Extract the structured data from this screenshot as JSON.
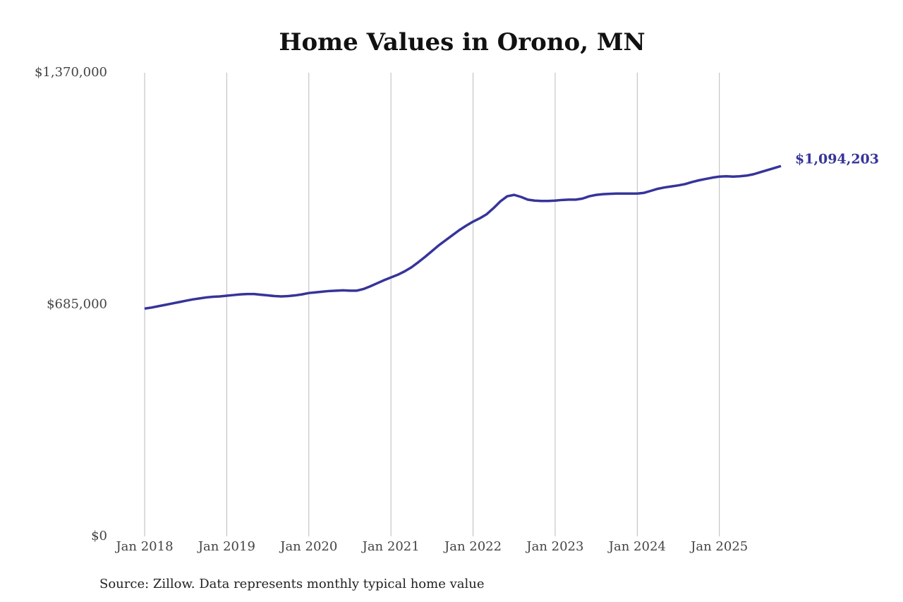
{
  "chart_data": {
    "type": "line",
    "title": "Home Values in Orono, MN",
    "source": "Source: Zillow. Data represents monthly typical home value",
    "color": "#36349a",
    "x": [
      "2018-01",
      "2018-02",
      "2018-03",
      "2018-04",
      "2018-05",
      "2018-06",
      "2018-07",
      "2018-08",
      "2018-09",
      "2018-10",
      "2018-11",
      "2018-12",
      "2019-01",
      "2019-02",
      "2019-03",
      "2019-04",
      "2019-05",
      "2019-06",
      "2019-07",
      "2019-08",
      "2019-09",
      "2019-10",
      "2019-11",
      "2019-12",
      "2020-01",
      "2020-02",
      "2020-03",
      "2020-04",
      "2020-05",
      "2020-06",
      "2020-07",
      "2020-08",
      "2020-09",
      "2020-10",
      "2020-11",
      "2020-12",
      "2021-01",
      "2021-02",
      "2021-03",
      "2021-04",
      "2021-05",
      "2021-06",
      "2021-07",
      "2021-08",
      "2021-09",
      "2021-10",
      "2021-11",
      "2021-12",
      "2022-01",
      "2022-02",
      "2022-03",
      "2022-04",
      "2022-05",
      "2022-06",
      "2022-07",
      "2022-08",
      "2022-09",
      "2022-10",
      "2022-11",
      "2022-12",
      "2023-01",
      "2023-02",
      "2023-03",
      "2023-04",
      "2023-05",
      "2023-06",
      "2023-07",
      "2023-08",
      "2023-09",
      "2023-10",
      "2023-11",
      "2023-12",
      "2024-01",
      "2024-02",
      "2024-03",
      "2024-04",
      "2024-05",
      "2024-06",
      "2024-07",
      "2024-08",
      "2024-09",
      "2024-10",
      "2024-11",
      "2024-12",
      "2025-01",
      "2025-02",
      "2025-03",
      "2025-04",
      "2025-05",
      "2025-06",
      "2025-07",
      "2025-08",
      "2025-09",
      "2025-10"
    ],
    "values": [
      673000,
      676000,
      680000,
      684000,
      688000,
      692000,
      696000,
      700000,
      703000,
      706000,
      708000,
      709000,
      711000,
      713000,
      715000,
      716000,
      716000,
      714000,
      712000,
      710000,
      709000,
      710000,
      712000,
      715000,
      719000,
      721000,
      723000,
      725000,
      726000,
      727000,
      726000,
      726000,
      731000,
      739000,
      748000,
      757000,
      765000,
      773000,
      783000,
      795000,
      810000,
      826000,
      843000,
      860000,
      875000,
      890000,
      905000,
      918000,
      930000,
      940000,
      952000,
      970000,
      990000,
      1005000,
      1009000,
      1003000,
      995000,
      992000,
      991000,
      991000,
      992000,
      994000,
      995000,
      995000,
      998000,
      1005000,
      1009000,
      1011000,
      1012000,
      1013000,
      1013000,
      1013000,
      1013000,
      1015000,
      1021000,
      1027000,
      1031000,
      1034000,
      1037000,
      1041000,
      1047000,
      1052000,
      1056000,
      1060000,
      1063000,
      1064000,
      1063000,
      1064000,
      1066000,
      1070000,
      1076000,
      1082000,
      1088000,
      1094203
    ],
    "end_label": {
      "value": 1094203,
      "label": "$1,094,203"
    },
    "xlim": [
      "2018-01",
      "2025-10"
    ],
    "xticks": [
      {
        "value": "2018-01",
        "label": "Jan 2018"
      },
      {
        "value": "2019-01",
        "label": "Jan 2019"
      },
      {
        "value": "2020-01",
        "label": "Jan 2020"
      },
      {
        "value": "2021-01",
        "label": "Jan 2021"
      },
      {
        "value": "2022-01",
        "label": "Jan 2022"
      },
      {
        "value": "2023-01",
        "label": "Jan 2023"
      },
      {
        "value": "2024-01",
        "label": "Jan 2024"
      },
      {
        "value": "2025-01",
        "label": "Jan 2025"
      }
    ],
    "ylim": [
      0,
      1370000
    ],
    "yticks": [
      {
        "value": 0,
        "label": "$0"
      },
      {
        "value": 685000,
        "label": "$685,000"
      },
      {
        "value": 1370000,
        "label": "$1,370,000"
      }
    ],
    "grid": "x"
  }
}
